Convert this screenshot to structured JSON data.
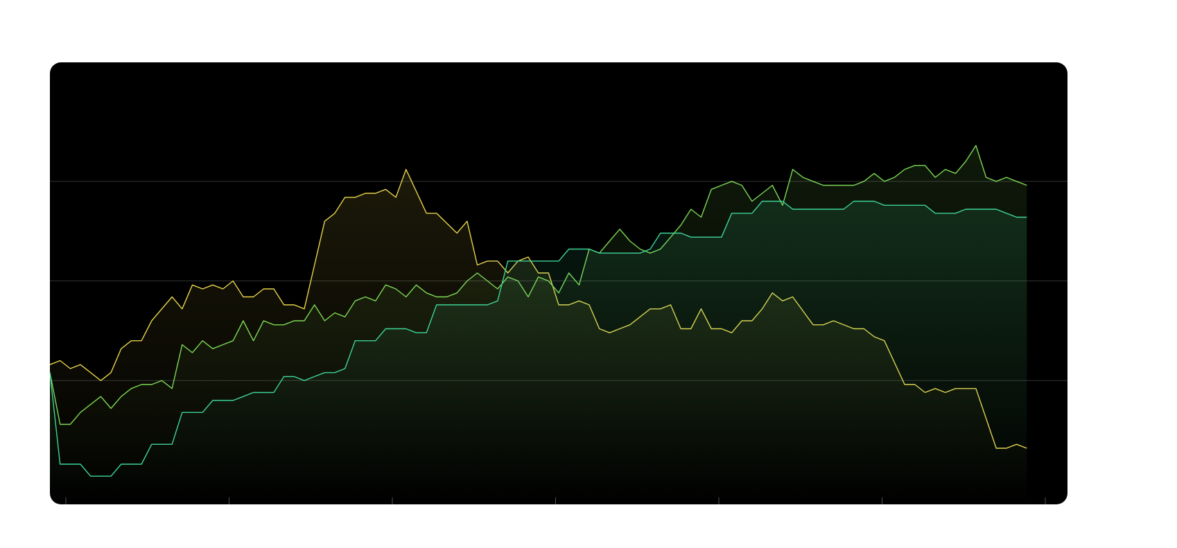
{
  "chart_data": {
    "type": "area",
    "title": "",
    "xlabel": "",
    "ylabel": "",
    "grid": "horizontal",
    "legend": "none",
    "x_ticks": 7,
    "xlim": [
      0,
      100
    ],
    "ylim": [
      0,
      100
    ],
    "series": [
      {
        "color": "#e8d44d",
        "points": [
          [
            0,
            29
          ],
          [
            1,
            30
          ],
          [
            2,
            28
          ],
          [
            3,
            29
          ],
          [
            5,
            25
          ],
          [
            6,
            27
          ],
          [
            7,
            33
          ],
          [
            8,
            35
          ],
          [
            9,
            35
          ],
          [
            10,
            40
          ],
          [
            12,
            46
          ],
          [
            13,
            43
          ],
          [
            14,
            49
          ],
          [
            15,
            48
          ],
          [
            16,
            49
          ],
          [
            17,
            48
          ],
          [
            18,
            50
          ],
          [
            19,
            46
          ],
          [
            20,
            46
          ],
          [
            21,
            48
          ],
          [
            22,
            48
          ],
          [
            23,
            44
          ],
          [
            24,
            44
          ],
          [
            25,
            43
          ],
          [
            27,
            65
          ],
          [
            28,
            67
          ],
          [
            29,
            71
          ],
          [
            30,
            71
          ],
          [
            31,
            72
          ],
          [
            32,
            72
          ],
          [
            33,
            73
          ],
          [
            34,
            71
          ],
          [
            35,
            78
          ],
          [
            37,
            67
          ],
          [
            38,
            67
          ],
          [
            40,
            62
          ],
          [
            41,
            65
          ],
          [
            42,
            54
          ],
          [
            43,
            55
          ],
          [
            44,
            55
          ],
          [
            45,
            52
          ],
          [
            46,
            55
          ],
          [
            47,
            56
          ],
          [
            48,
            52
          ],
          [
            49,
            52
          ],
          [
            50,
            44
          ],
          [
            51,
            44
          ],
          [
            52,
            45
          ],
          [
            53,
            44
          ],
          [
            54,
            38
          ],
          [
            55,
            37
          ],
          [
            56,
            38
          ],
          [
            57,
            39
          ],
          [
            59,
            43
          ],
          [
            60,
            43
          ],
          [
            61,
            44
          ],
          [
            62,
            38
          ],
          [
            63,
            38
          ],
          [
            64,
            43
          ],
          [
            65,
            38
          ],
          [
            66,
            38
          ],
          [
            67,
            37
          ],
          [
            68,
            40
          ],
          [
            69,
            40
          ],
          [
            70,
            43
          ],
          [
            71,
            47
          ],
          [
            72,
            45
          ],
          [
            73,
            46
          ],
          [
            75,
            39
          ],
          [
            76,
            39
          ],
          [
            77,
            40
          ],
          [
            79,
            38
          ],
          [
            80,
            38
          ],
          [
            81,
            36
          ],
          [
            82,
            35
          ],
          [
            84,
            24
          ],
          [
            85,
            24
          ],
          [
            86,
            22
          ],
          [
            87,
            23
          ],
          [
            88,
            22
          ],
          [
            89,
            23
          ],
          [
            91,
            23
          ],
          [
            93,
            8
          ],
          [
            94,
            8
          ],
          [
            95,
            9
          ],
          [
            96,
            8
          ]
        ]
      },
      {
        "color": "#7ed957",
        "points": [
          [
            0,
            27
          ],
          [
            1,
            14
          ],
          [
            2,
            14
          ],
          [
            3,
            17
          ],
          [
            4,
            19
          ],
          [
            5,
            21
          ],
          [
            6,
            18
          ],
          [
            7,
            21
          ],
          [
            8,
            23
          ],
          [
            9,
            24
          ],
          [
            10,
            24
          ],
          [
            11,
            25
          ],
          [
            12,
            23
          ],
          [
            13,
            34
          ],
          [
            14,
            32
          ],
          [
            15,
            35
          ],
          [
            16,
            33
          ],
          [
            17,
            34
          ],
          [
            18,
            35
          ],
          [
            19,
            40
          ],
          [
            20,
            35
          ],
          [
            21,
            40
          ],
          [
            22,
            39
          ],
          [
            23,
            39
          ],
          [
            24,
            40
          ],
          [
            25,
            40
          ],
          [
            26,
            44
          ],
          [
            27,
            40
          ],
          [
            28,
            42
          ],
          [
            29,
            41
          ],
          [
            30,
            45
          ],
          [
            31,
            46
          ],
          [
            32,
            45
          ],
          [
            33,
            49
          ],
          [
            34,
            48
          ],
          [
            35,
            46
          ],
          [
            36,
            49
          ],
          [
            37,
            47
          ],
          [
            38,
            46
          ],
          [
            39,
            46
          ],
          [
            40,
            47
          ],
          [
            41,
            50
          ],
          [
            42,
            52
          ],
          [
            43,
            50
          ],
          [
            44,
            48
          ],
          [
            45,
            51
          ],
          [
            46,
            50
          ],
          [
            47,
            46
          ],
          [
            48,
            51
          ],
          [
            49,
            50
          ],
          [
            50,
            47
          ],
          [
            51,
            52
          ],
          [
            52,
            49
          ],
          [
            53,
            58
          ],
          [
            54,
            57
          ],
          [
            55,
            60
          ],
          [
            56,
            63
          ],
          [
            57,
            60
          ],
          [
            58,
            58
          ],
          [
            59,
            57
          ],
          [
            60,
            58
          ],
          [
            61,
            61
          ],
          [
            62,
            64
          ],
          [
            63,
            68
          ],
          [
            64,
            66
          ],
          [
            65,
            73
          ],
          [
            66,
            74
          ],
          [
            67,
            75
          ],
          [
            68,
            74
          ],
          [
            69,
            70
          ],
          [
            70,
            72
          ],
          [
            71,
            74
          ],
          [
            72,
            69
          ],
          [
            73,
            78
          ],
          [
            74,
            76
          ],
          [
            75,
            75
          ],
          [
            76,
            74
          ],
          [
            77,
            74
          ],
          [
            78,
            74
          ],
          [
            79,
            74
          ],
          [
            80,
            75
          ],
          [
            81,
            77
          ],
          [
            82,
            75
          ],
          [
            83,
            76
          ],
          [
            84,
            78
          ],
          [
            85,
            79
          ],
          [
            86,
            79
          ],
          [
            87,
            76
          ],
          [
            88,
            78
          ],
          [
            89,
            77
          ],
          [
            90,
            80
          ],
          [
            91,
            84
          ],
          [
            92,
            76
          ],
          [
            93,
            75
          ],
          [
            94,
            76
          ],
          [
            95,
            75
          ],
          [
            96,
            74
          ]
        ]
      },
      {
        "color": "#3ed598",
        "points": [
          [
            0,
            27
          ],
          [
            1,
            4
          ],
          [
            2,
            4
          ],
          [
            3,
            4
          ],
          [
            4,
            1
          ],
          [
            5,
            1
          ],
          [
            6,
            1
          ],
          [
            7,
            4
          ],
          [
            8,
            4
          ],
          [
            9,
            4
          ],
          [
            10,
            9
          ],
          [
            11,
            9
          ],
          [
            12,
            9
          ],
          [
            13,
            17
          ],
          [
            14,
            17
          ],
          [
            15,
            17
          ],
          [
            16,
            20
          ],
          [
            17,
            20
          ],
          [
            18,
            20
          ],
          [
            19,
            21
          ],
          [
            20,
            22
          ],
          [
            21,
            22
          ],
          [
            22,
            22
          ],
          [
            23,
            26
          ],
          [
            24,
            26
          ],
          [
            25,
            25
          ],
          [
            26,
            26
          ],
          [
            27,
            27
          ],
          [
            28,
            27
          ],
          [
            29,
            28
          ],
          [
            30,
            35
          ],
          [
            31,
            35
          ],
          [
            32,
            35
          ],
          [
            33,
            38
          ],
          [
            34,
            38
          ],
          [
            35,
            38
          ],
          [
            36,
            37
          ],
          [
            37,
            37
          ],
          [
            38,
            44
          ],
          [
            39,
            44
          ],
          [
            40,
            44
          ],
          [
            41,
            44
          ],
          [
            42,
            44
          ],
          [
            43,
            44
          ],
          [
            44,
            45
          ],
          [
            45,
            55
          ],
          [
            46,
            55
          ],
          [
            47,
            55
          ],
          [
            48,
            55
          ],
          [
            49,
            55
          ],
          [
            50,
            55
          ],
          [
            51,
            58
          ],
          [
            52,
            58
          ],
          [
            53,
            58
          ],
          [
            54,
            57
          ],
          [
            55,
            57
          ],
          [
            56,
            57
          ],
          [
            57,
            57
          ],
          [
            58,
            57
          ],
          [
            59,
            58
          ],
          [
            60,
            62
          ],
          [
            61,
            62
          ],
          [
            62,
            62
          ],
          [
            63,
            61
          ],
          [
            64,
            61
          ],
          [
            65,
            61
          ],
          [
            66,
            61
          ],
          [
            67,
            67
          ],
          [
            68,
            67
          ],
          [
            69,
            67
          ],
          [
            70,
            70
          ],
          [
            71,
            70
          ],
          [
            72,
            70
          ],
          [
            73,
            68
          ],
          [
            74,
            68
          ],
          [
            75,
            68
          ],
          [
            76,
            68
          ],
          [
            77,
            68
          ],
          [
            78,
            68
          ],
          [
            79,
            70
          ],
          [
            80,
            70
          ],
          [
            81,
            70
          ],
          [
            82,
            69
          ],
          [
            83,
            69
          ],
          [
            84,
            69
          ],
          [
            85,
            69
          ],
          [
            86,
            69
          ],
          [
            87,
            67
          ],
          [
            88,
            67
          ],
          [
            89,
            67
          ],
          [
            90,
            68
          ],
          [
            91,
            68
          ],
          [
            92,
            68
          ],
          [
            93,
            68
          ],
          [
            94,
            67
          ],
          [
            95,
            66
          ],
          [
            96,
            66
          ]
        ]
      }
    ]
  }
}
